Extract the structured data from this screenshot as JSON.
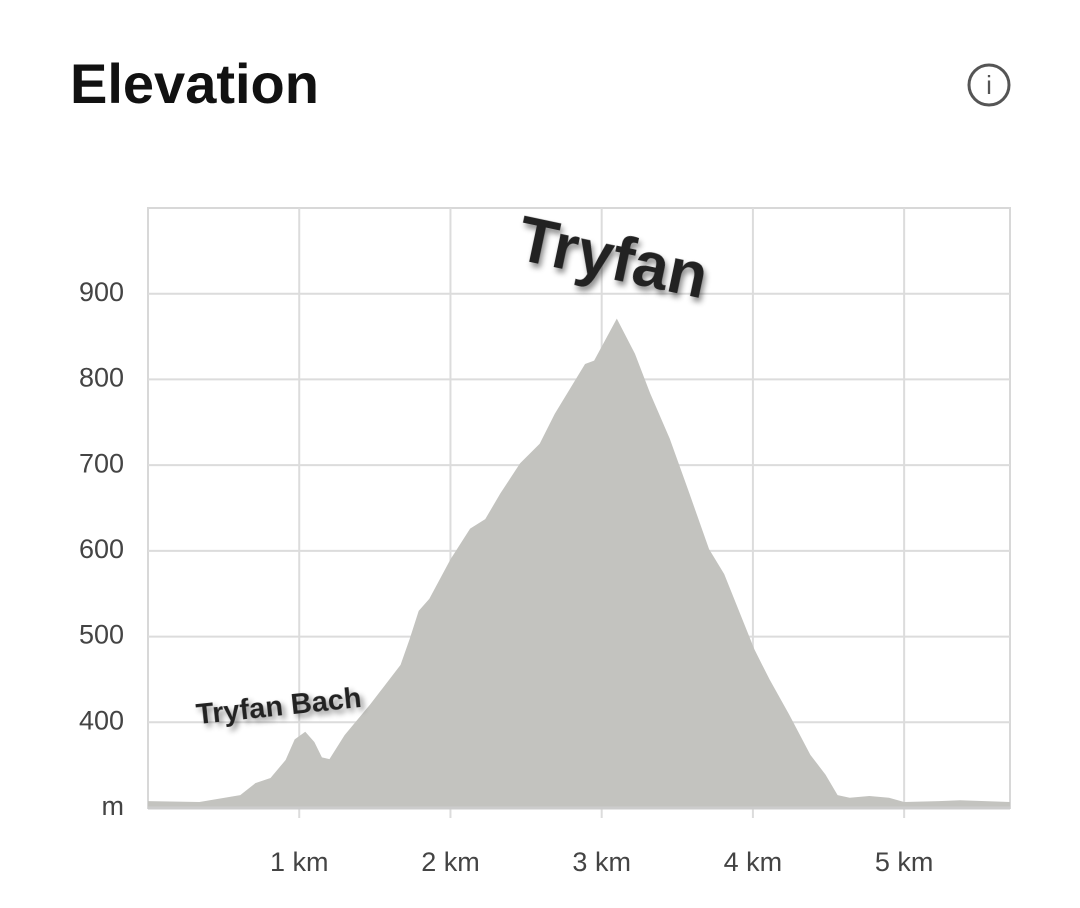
{
  "chart_data": {
    "type": "area",
    "title": "Elevation",
    "info_icon": "i",
    "x": [
      0,
      0.34,
      0.61,
      0.71,
      0.81,
      0.91,
      0.97,
      1.04,
      1.1,
      1.15,
      1.2,
      1.3,
      1.47,
      1.67,
      1.73,
      1.79,
      1.86,
      2.0,
      2.13,
      2.23,
      2.33,
      2.46,
      2.59,
      2.69,
      2.79,
      2.89,
      2.95,
      3.1,
      3.22,
      3.32,
      3.45,
      3.58,
      3.71,
      3.81,
      4.01,
      4.11,
      4.24,
      4.38,
      4.48,
      4.56,
      4.64,
      4.77,
      4.9,
      5.0,
      5.23,
      5.37,
      5.7
    ],
    "values": [
      308,
      307,
      315,
      329,
      335,
      356,
      380,
      389,
      377,
      359,
      357,
      385,
      421,
      467,
      497,
      530,
      544,
      590,
      626,
      637,
      667,
      702,
      725,
      760,
      789,
      818,
      822,
      871,
      830,
      784,
      731,
      667,
      602,
      573,
      485,
      450,
      409,
      362,
      339,
      315,
      312,
      314,
      312,
      307,
      308,
      309,
      307
    ],
    "color": "#c3c3bf",
    "xlim": [
      0,
      5.7
    ],
    "xticks": [
      {
        "value": 1,
        "label": "1 km"
      },
      {
        "value": 2,
        "label": "2 km"
      },
      {
        "value": 3,
        "label": "3 km"
      },
      {
        "value": 4,
        "label": "4 km"
      },
      {
        "value": 5,
        "label": "5 km"
      }
    ],
    "ylim": [
      300,
      1000
    ],
    "yticks": [
      {
        "value": 300,
        "label": "m"
      },
      400,
      500,
      600,
      700,
      800,
      900
    ],
    "grid": true,
    "annotations": [
      "Tryfan",
      "Tryfan Bach"
    ]
  }
}
